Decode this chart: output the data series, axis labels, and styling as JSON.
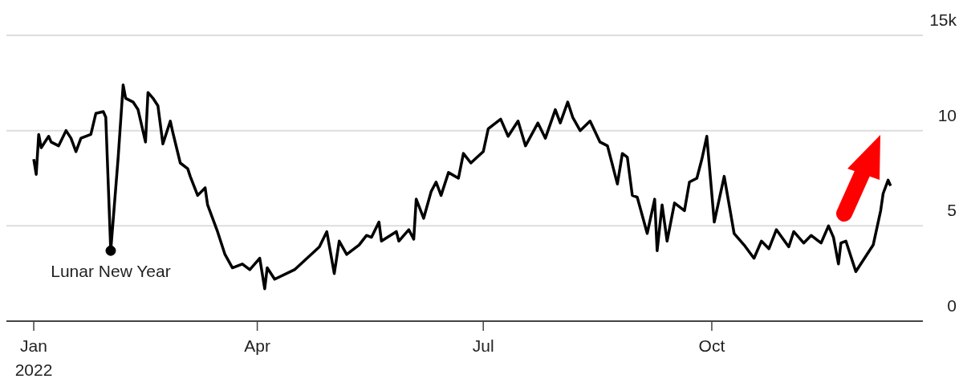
{
  "chart_data": {
    "type": "line",
    "color": "#000000",
    "grid": "y",
    "x": [
      "2022-01-01",
      "2022-01-02",
      "2022-01-03",
      "2022-01-04",
      "2022-01-07",
      "2022-01-08",
      "2022-01-11",
      "2022-01-14",
      "2022-01-16",
      "2022-01-18",
      "2022-01-20",
      "2022-01-24",
      "2022-01-26",
      "2022-01-29",
      "2022-01-30",
      "2022-02-01",
      "2022-02-04",
      "2022-02-06",
      "2022-02-07",
      "2022-02-10",
      "2022-02-12",
      "2022-02-15",
      "2022-02-16",
      "2022-02-18",
      "2022-02-20",
      "2022-02-22",
      "2022-02-23",
      "2022-02-25",
      "2022-02-26",
      "2022-03-01",
      "2022-03-04",
      "2022-03-05",
      "2022-03-08",
      "2022-03-11",
      "2022-03-12",
      "2022-03-16",
      "2022-03-19",
      "2022-03-22",
      "2022-03-26",
      "2022-03-29",
      "2022-04-02",
      "2022-04-04",
      "2022-04-05",
      "2022-04-08",
      "2022-04-16",
      "2022-04-21",
      "2022-04-26",
      "2022-04-29",
      "2022-05-02",
      "2022-05-04",
      "2022-05-07",
      "2022-05-12",
      "2022-05-15",
      "2022-05-17",
      "2022-05-20",
      "2022-05-21",
      "2022-05-27",
      "2022-05-28",
      "2022-06-01",
      "2022-06-03",
      "2022-06-04",
      "2022-06-07",
      "2022-06-10",
      "2022-06-12",
      "2022-06-14",
      "2022-06-17",
      "2022-06-21",
      "2022-06-23",
      "2022-06-26",
      "2022-07-01",
      "2022-07-03",
      "2022-07-08",
      "2022-07-11",
      "2022-07-15",
      "2022-07-18",
      "2022-07-23",
      "2022-07-26",
      "2022-07-30",
      "2022-08-01",
      "2022-08-04",
      "2022-08-06",
      "2022-08-09",
      "2022-08-13",
      "2022-08-17",
      "2022-08-20",
      "2022-08-24",
      "2022-08-26",
      "2022-08-28",
      "2022-08-30",
      "2022-09-01",
      "2022-09-05",
      "2022-09-08",
      "2022-09-09",
      "2022-09-11",
      "2022-09-13",
      "2022-09-16",
      "2022-09-20",
      "2022-09-22",
      "2022-09-25",
      "2022-09-27",
      "2022-09-29",
      "2022-10-02",
      "2022-10-06",
      "2022-10-10",
      "2022-10-14",
      "2022-10-18",
      "2022-10-21",
      "2022-10-24",
      "2022-10-27",
      "2022-11-01",
      "2022-11-03",
      "2022-11-07",
      "2022-11-10",
      "2022-11-14",
      "2022-11-17",
      "2022-11-19",
      "2022-11-21",
      "2022-11-22",
      "2022-11-24",
      "2022-11-28",
      "2022-12-02",
      "2022-12-05",
      "2022-12-08",
      "2022-12-09",
      "2022-12-11",
      "2022-12-12"
    ],
    "values": [
      8.5,
      7.7,
      9.8,
      9.1,
      9.7,
      9.4,
      9.2,
      10.0,
      9.6,
      8.9,
      9.6,
      9.8,
      10.9,
      11.0,
      10.7,
      3.7,
      8.6,
      12.4,
      11.7,
      11.5,
      11.1,
      9.4,
      12.0,
      11.7,
      11.3,
      9.3,
      9.7,
      10.5,
      9.9,
      8.3,
      8.0,
      7.6,
      6.6,
      7.0,
      6.1,
      4.7,
      3.5,
      2.8,
      3.0,
      2.7,
      3.3,
      1.7,
      2.8,
      2.2,
      2.7,
      3.3,
      3.9,
      4.7,
      2.5,
      4.2,
      3.5,
      4.0,
      4.5,
      4.4,
      5.2,
      4.2,
      4.7,
      4.2,
      4.8,
      4.3,
      6.4,
      5.4,
      6.8,
      7.3,
      6.6,
      7.8,
      7.5,
      8.8,
      8.3,
      8.9,
      10.1,
      10.6,
      9.7,
      10.5,
      9.2,
      10.4,
      9.6,
      11.1,
      10.4,
      11.5,
      10.7,
      10.0,
      10.5,
      9.4,
      9.2,
      7.2,
      8.8,
      8.6,
      6.6,
      6.5,
      4.6,
      6.4,
      3.7,
      6.1,
      4.2,
      6.2,
      5.8,
      7.3,
      7.5,
      8.5,
      9.7,
      5.2,
      7.6,
      4.6,
      4.0,
      3.3,
      4.2,
      3.8,
      4.8,
      3.9,
      4.7,
      4.1,
      4.5,
      4.1,
      5.0,
      4.4,
      3.0,
      4.1,
      4.2,
      2.6,
      3.4,
      4.0,
      5.8,
      6.7,
      7.4,
      7.1
    ],
    "xlim": [
      "2021-12-21",
      "2022-12-25"
    ],
    "xticks": [
      {
        "value": "2022-01-01",
        "label": "Jan\n2022"
      },
      {
        "value": "2022-04-01",
        "label": "Apr"
      },
      {
        "value": "2022-07-01",
        "label": "Jul"
      },
      {
        "value": "2022-10-01",
        "label": "Oct"
      }
    ],
    "ylim": [
      0,
      15
    ],
    "yticks": [
      0,
      5,
      10,
      {
        "value": 15,
        "label": "15k"
      }
    ],
    "annotations": [
      {
        "text": "Lunar New Year",
        "x": "2022-02-01",
        "y": 3.7
      }
    ]
  }
}
